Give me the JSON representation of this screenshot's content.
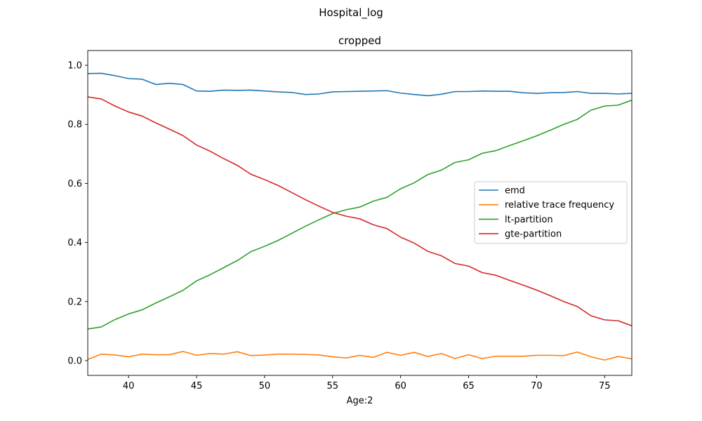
{
  "figure": {
    "suptitle": "Hospital_log"
  },
  "chart_data": {
    "type": "line",
    "title": "cropped",
    "xlabel": "Age:2",
    "ylabel": "",
    "xlim": [
      37,
      77
    ],
    "ylim": [
      -0.05,
      1.05
    ],
    "xticks": [
      40,
      45,
      50,
      55,
      60,
      65,
      70,
      75
    ],
    "yticks": [
      0.0,
      0.2,
      0.4,
      0.6,
      0.8,
      1.0
    ],
    "grid": false,
    "legend_position": "center-right",
    "x": [
      37,
      38,
      39,
      40,
      41,
      42,
      43,
      44,
      45,
      46,
      47,
      48,
      49,
      50,
      51,
      52,
      53,
      54,
      55,
      56,
      57,
      58,
      59,
      60,
      61,
      62,
      63,
      64,
      65,
      66,
      67,
      68,
      69,
      70,
      71,
      72,
      73,
      74,
      75,
      76,
      77
    ],
    "series": [
      {
        "name": "emd",
        "color": "#1f77b4",
        "values": [
          0.972,
          0.973,
          0.965,
          0.955,
          0.953,
          0.935,
          0.939,
          0.935,
          0.913,
          0.912,
          0.916,
          0.915,
          0.916,
          0.913,
          0.91,
          0.908,
          0.901,
          0.903,
          0.91,
          0.911,
          0.912,
          0.913,
          0.914,
          0.906,
          0.901,
          0.897,
          0.902,
          0.911,
          0.911,
          0.913,
          0.912,
          0.912,
          0.907,
          0.905,
          0.907,
          0.908,
          0.911,
          0.905,
          0.905,
          0.903,
          0.905
        ]
      },
      {
        "name": "relative trace frequency",
        "color": "#ff7f0e",
        "values": [
          0.004,
          0.022,
          0.019,
          0.013,
          0.022,
          0.02,
          0.02,
          0.031,
          0.018,
          0.024,
          0.022,
          0.03,
          0.017,
          0.019,
          0.022,
          0.022,
          0.021,
          0.019,
          0.013,
          0.009,
          0.018,
          0.011,
          0.028,
          0.018,
          0.028,
          0.014,
          0.024,
          0.007,
          0.02,
          0.007,
          0.015,
          0.015,
          0.015,
          0.018,
          0.018,
          0.017,
          0.029,
          0.013,
          0.002,
          0.014,
          0.006
        ]
      },
      {
        "name": "lt-partition",
        "color": "#2ca02c",
        "values": [
          0.107,
          0.114,
          0.139,
          0.158,
          0.172,
          0.195,
          0.216,
          0.238,
          0.27,
          0.291,
          0.315,
          0.339,
          0.369,
          0.387,
          0.407,
          0.431,
          0.455,
          0.477,
          0.498,
          0.511,
          0.52,
          0.54,
          0.553,
          0.582,
          0.602,
          0.63,
          0.645,
          0.671,
          0.68,
          0.702,
          0.711,
          0.728,
          0.744,
          0.761,
          0.78,
          0.8,
          0.817,
          0.848,
          0.862,
          0.865,
          0.882
        ]
      },
      {
        "name": "gte-partition",
        "color": "#d62728",
        "values": [
          0.893,
          0.886,
          0.862,
          0.842,
          0.828,
          0.805,
          0.784,
          0.762,
          0.73,
          0.709,
          0.684,
          0.661,
          0.631,
          0.613,
          0.593,
          0.569,
          0.545,
          0.523,
          0.502,
          0.489,
          0.48,
          0.46,
          0.447,
          0.418,
          0.398,
          0.37,
          0.355,
          0.329,
          0.32,
          0.298,
          0.289,
          0.272,
          0.256,
          0.239,
          0.22,
          0.2,
          0.183,
          0.152,
          0.138,
          0.135,
          0.118
        ]
      }
    ]
  }
}
